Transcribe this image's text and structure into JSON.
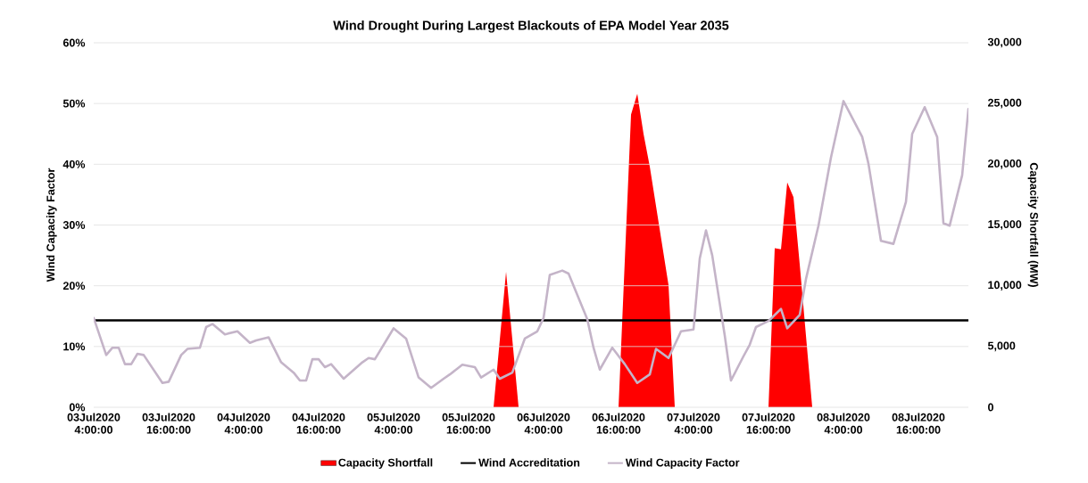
{
  "chart_data": {
    "type": "line",
    "title": "Wind Drought During Largest Blackouts of EPA Model Year 2035",
    "ylabel": "Wind Capacity Factor",
    "y2label": "Capacity Shortfall (MW)",
    "xlim": [
      "2020-07-03T04:00",
      "2020-07-09T00:00"
    ],
    "xticks": [
      {
        "value": "2020-07-03T04:00",
        "label": "03Jul2020 4:00:00"
      },
      {
        "value": "2020-07-03T16:00",
        "label": "03Jul2020 16:00:00"
      },
      {
        "value": "2020-07-04T04:00",
        "label": "04Jul2020 4:00:00"
      },
      {
        "value": "2020-07-04T16:00",
        "label": "04Jul2020 16:00:00"
      },
      {
        "value": "2020-07-05T04:00",
        "label": "05Jul2020 4:00:00"
      },
      {
        "value": "2020-07-05T16:00",
        "label": "05Jul2020 16:00:00"
      },
      {
        "value": "2020-07-06T04:00",
        "label": "06Jul2020 4:00:00"
      },
      {
        "value": "2020-07-06T16:00",
        "label": "06Jul2020 16:00:00"
      },
      {
        "value": "2020-07-07T04:00",
        "label": "07Jul2020 4:00:00"
      },
      {
        "value": "2020-07-07T16:00",
        "label": "07Jul2020 16:00:00"
      },
      {
        "value": "2020-07-08T04:00",
        "label": "08Jul2020 4:00:00"
      },
      {
        "value": "2020-07-08T16:00",
        "label": "08Jul2020 16:00:00"
      }
    ],
    "ylim": [
      0,
      60
    ],
    "yticks": [
      {
        "value": 0,
        "label": "0%"
      },
      {
        "value": 10,
        "label": "10%"
      },
      {
        "value": 20,
        "label": "20%"
      },
      {
        "value": 30,
        "label": "30%"
      },
      {
        "value": 40,
        "label": "40%"
      },
      {
        "value": 50,
        "label": "50%"
      },
      {
        "value": 60,
        "label": "60%"
      }
    ],
    "y2lim": [
      0,
      30000
    ],
    "y2ticks": [
      0,
      {
        "value": 5000,
        "label": "5,000"
      },
      {
        "value": 10000,
        "label": "10,000"
      },
      {
        "value": 15000,
        "label": "15,000"
      },
      {
        "value": 20000,
        "label": "20,000"
      },
      {
        "value": 25000,
        "label": "25,000"
      },
      {
        "value": 30000,
        "label": "30,000"
      }
    ],
    "grid": "y",
    "legend": "bottom",
    "series": [
      {
        "name": "Capacity Shortfall",
        "type": "area",
        "axis": "y2",
        "color": "#ff0000",
        "x": [
          "2020-07-05T20:00",
          "2020-07-05T22:00",
          "2020-07-06T00:00",
          "2020-07-06T16:00",
          "2020-07-06T18:00",
          "2020-07-06T19:00",
          "2020-07-06T20:00",
          "2020-07-06T21:00",
          "2020-07-07T00:00",
          "2020-07-07T01:00",
          "2020-07-07T16:00",
          "2020-07-07T17:00",
          "2020-07-07T18:00",
          "2020-07-07T19:00",
          "2020-07-07T20:00",
          "2020-07-07T21:00",
          "2020-07-07T23:00"
        ],
        "values": [
          0,
          11150,
          0,
          0,
          24100,
          25800,
          22500,
          19800,
          10050,
          0,
          0,
          13100,
          13000,
          18500,
          17300,
          11750,
          0
        ]
      },
      {
        "name": "Wind Accreditation",
        "color": "#000000",
        "x": [
          "2020-07-03T04:00",
          "2020-07-09T00:00"
        ],
        "values": [
          14.3,
          14.3
        ]
      },
      {
        "name": "Wind Capacity Factor",
        "color": "#c4b4c8",
        "x": [
          "2020-07-03T04:00",
          "2020-07-03T06:00",
          "2020-07-03T07:00",
          "2020-07-03T08:00",
          "2020-07-03T09:00",
          "2020-07-03T10:00",
          "2020-07-03T11:00",
          "2020-07-03T12:00",
          "2020-07-03T15:00",
          "2020-07-03T16:00",
          "2020-07-03T18:00",
          "2020-07-03T19:00",
          "2020-07-03T21:00",
          "2020-07-03T22:00",
          "2020-07-03T23:00",
          "2020-07-04T01:00",
          "2020-07-04T03:00",
          "2020-07-04T05:00",
          "2020-07-04T06:00",
          "2020-07-04T08:00",
          "2020-07-04T10:00",
          "2020-07-04T12:00",
          "2020-07-04T13:00",
          "2020-07-04T14:00",
          "2020-07-04T15:00",
          "2020-07-04T16:00",
          "2020-07-04T17:00",
          "2020-07-04T18:00",
          "2020-07-04T20:00",
          "2020-07-04T23:00",
          "2020-07-05T00:00",
          "2020-07-05T01:00",
          "2020-07-05T03:00",
          "2020-07-05T04:00",
          "2020-07-05T06:00",
          "2020-07-05T08:00",
          "2020-07-05T10:00",
          "2020-07-05T12:00",
          "2020-07-05T13:00",
          "2020-07-05T15:00",
          "2020-07-05T17:00",
          "2020-07-05T18:00",
          "2020-07-05T20:00",
          "2020-07-05T21:00",
          "2020-07-05T23:00",
          "2020-07-06T01:00",
          "2020-07-06T03:00",
          "2020-07-06T04:00",
          "2020-07-06T05:00",
          "2020-07-06T07:00",
          "2020-07-06T08:00",
          "2020-07-06T11:00",
          "2020-07-06T12:00",
          "2020-07-06T13:00",
          "2020-07-06T15:00",
          "2020-07-06T17:00",
          "2020-07-06T19:00",
          "2020-07-06T21:00",
          "2020-07-06T22:00",
          "2020-07-07T00:00",
          "2020-07-07T02:00",
          "2020-07-07T04:00",
          "2020-07-07T05:00",
          "2020-07-07T06:00",
          "2020-07-07T07:00",
          "2020-07-07T09:00",
          "2020-07-07T10:00",
          "2020-07-07T12:00",
          "2020-07-07T13:00",
          "2020-07-07T14:00",
          "2020-07-07T16:00",
          "2020-07-07T18:00",
          "2020-07-07T19:00",
          "2020-07-07T21:00",
          "2020-07-07T22:00",
          "2020-07-08T00:00",
          "2020-07-08T02:00",
          "2020-07-08T04:00",
          "2020-07-08T07:00",
          "2020-07-08T08:00",
          "2020-07-08T10:00",
          "2020-07-08T12:00",
          "2020-07-08T14:00",
          "2020-07-08T15:00",
          "2020-07-08T17:00",
          "2020-07-08T19:00",
          "2020-07-08T20:00",
          "2020-07-08T21:00",
          "2020-07-08T23:00",
          "2020-07-09T00:00"
        ],
        "values": [
          14.7,
          8.6,
          9.8,
          9.8,
          7.1,
          7.1,
          8.8,
          8.6,
          4.0,
          4.2,
          8.6,
          9.6,
          9.8,
          13.2,
          13.7,
          12.0,
          12.5,
          10.6,
          11.0,
          11.5,
          7.4,
          5.7,
          4.4,
          4.4,
          7.9,
          7.9,
          6.6,
          7.1,
          4.7,
          7.4,
          8.1,
          7.9,
          11.3,
          13.0,
          11.3,
          4.9,
          3.2,
          4.7,
          5.4,
          7.0,
          6.6,
          4.9,
          6.2,
          4.7,
          5.7,
          11.3,
          12.5,
          14.7,
          21.8,
          22.5,
          22.0,
          14.5,
          9.8,
          6.2,
          9.8,
          7.1,
          4.0,
          5.4,
          9.6,
          8.1,
          12.5,
          12.8,
          24.5,
          29.1,
          25.0,
          11.8,
          4.4,
          8.4,
          10.3,
          13.2,
          14.2,
          16.2,
          13.0,
          15.2,
          21.1,
          29.9,
          41.1,
          50.4,
          44.5,
          40.1,
          27.4,
          26.9,
          33.8,
          45.0,
          49.4,
          44.5,
          30.3,
          29.9,
          38.2,
          49.1
        ]
      }
    ]
  }
}
